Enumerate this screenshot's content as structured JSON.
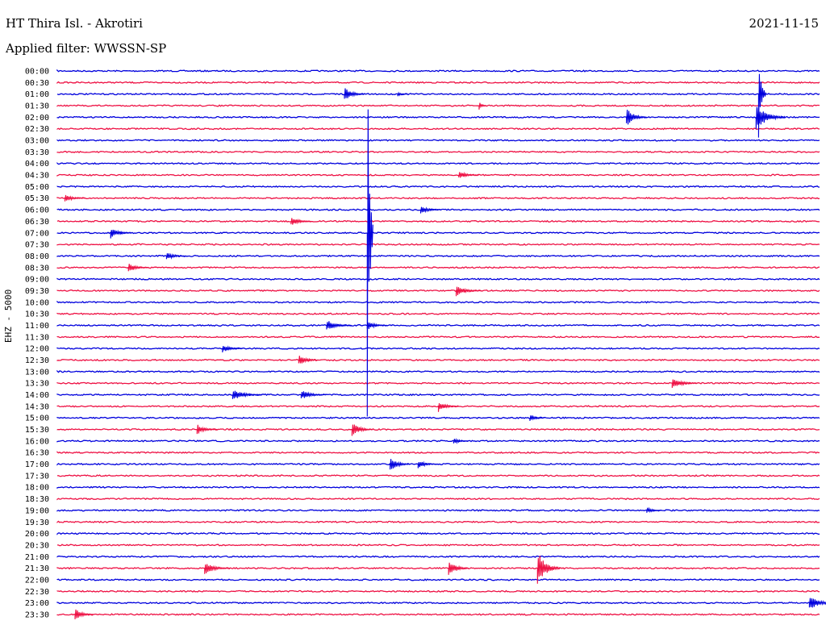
{
  "header": {
    "station": "HT Thira Isl. - Akrotiri",
    "filter": "Applied filter: WWSSN-SP",
    "date": "2021-11-15"
  },
  "chart_data": {
    "type": "line",
    "ylabel": "EHZ - 5000",
    "xlabel": "",
    "title": "",
    "row_labels": [
      "00:00",
      "00:30",
      "01:00",
      "01:30",
      "02:00",
      "02:30",
      "03:00",
      "03:30",
      "04:00",
      "04:30",
      "05:00",
      "05:30",
      "06:00",
      "06:30",
      "07:00",
      "07:30",
      "08:00",
      "08:30",
      "09:00",
      "09:30",
      "10:00",
      "10:30",
      "11:00",
      "11:30",
      "12:00",
      "12:30",
      "13:00",
      "13:30",
      "14:00",
      "14:30",
      "15:00",
      "15:30",
      "16:00",
      "16:30",
      "17:00",
      "17:30",
      "18:00",
      "18:30",
      "19:00",
      "19:30",
      "20:00",
      "20:30",
      "21:00",
      "21:30",
      "22:00",
      "22:30",
      "23:00",
      "23:30"
    ],
    "colors": {
      "even": "#0000dd",
      "odd": "#ee1144"
    },
    "row_duration_minutes": 30,
    "events": [
      {
        "row": 2,
        "minute": 11.3,
        "amplitude": 9,
        "duration": 0.8
      },
      {
        "row": 2,
        "minute": 13.4,
        "amplitude": 3,
        "duration": 0.4
      },
      {
        "row": 3,
        "minute": 16.6,
        "amplitude": 5,
        "duration": 0.3
      },
      {
        "row": 4,
        "minute": 22.4,
        "amplitude": 12,
        "duration": 0.8
      },
      {
        "row": 4,
        "minute": 27.5,
        "amplitude": 16,
        "duration": 1.2
      },
      {
        "row": 2,
        "minute": 27.6,
        "amplitude": 55,
        "duration": 0.3
      },
      {
        "row": 9,
        "minute": 15.8,
        "amplitude": 5,
        "duration": 0.8
      },
      {
        "row": 11,
        "minute": 0.3,
        "amplitude": 5,
        "duration": 0.8
      },
      {
        "row": 12,
        "minute": 14.3,
        "amplitude": 5,
        "duration": 0.8
      },
      {
        "row": 13,
        "minute": 9.2,
        "amplitude": 6,
        "duration": 0.8
      },
      {
        "row": 14,
        "minute": 2.1,
        "amplitude": 7,
        "duration": 0.8
      },
      {
        "row": 16,
        "minute": 4.3,
        "amplitude": 5,
        "duration": 0.8
      },
      {
        "row": 17,
        "minute": 2.8,
        "amplitude": 6,
        "duration": 0.8
      },
      {
        "row": 19,
        "minute": 15.7,
        "amplitude": 7,
        "duration": 1.0
      },
      {
        "row": 22,
        "minute": 10.6,
        "amplitude": 7,
        "duration": 1.0
      },
      {
        "row": 22,
        "minute": 12.2,
        "amplitude": 6,
        "duration": 0.8
      },
      {
        "row": 24,
        "minute": 6.5,
        "amplitude": 5,
        "duration": 0.8
      },
      {
        "row": 25,
        "minute": 9.5,
        "amplitude": 7,
        "duration": 0.8
      },
      {
        "row": 14,
        "minute": 12.2,
        "amplitude": 230,
        "duration": 0.25
      },
      {
        "row": 27,
        "minute": 24.2,
        "amplitude": 7,
        "duration": 1.0
      },
      {
        "row": 28,
        "minute": 6.9,
        "amplitude": 7,
        "duration": 1.2
      },
      {
        "row": 28,
        "minute": 9.6,
        "amplitude": 6,
        "duration": 1.0
      },
      {
        "row": 29,
        "minute": 15.0,
        "amplitude": 7,
        "duration": 0.8
      },
      {
        "row": 30,
        "minute": 18.6,
        "amplitude": 5,
        "duration": 0.6
      },
      {
        "row": 31,
        "minute": 5.5,
        "amplitude": 7,
        "duration": 0.8
      },
      {
        "row": 31,
        "minute": 11.6,
        "amplitude": 9,
        "duration": 0.8
      },
      {
        "row": 32,
        "minute": 15.6,
        "amplitude": 4,
        "duration": 0.6
      },
      {
        "row": 34,
        "minute": 13.1,
        "amplitude": 9,
        "duration": 0.8
      },
      {
        "row": 34,
        "minute": 14.2,
        "amplitude": 5,
        "duration": 0.8
      },
      {
        "row": 38,
        "minute": 23.2,
        "amplitude": 4,
        "duration": 0.6
      },
      {
        "row": 43,
        "minute": 5.8,
        "amplitude": 8,
        "duration": 1.0
      },
      {
        "row": 43,
        "minute": 15.4,
        "amplitude": 11,
        "duration": 0.8
      },
      {
        "row": 43,
        "minute": 18.9,
        "amplitude": 22,
        "duration": 0.9
      },
      {
        "row": 46,
        "minute": 29.6,
        "amplitude": 8,
        "duration": 1.2
      },
      {
        "row": 47,
        "minute": 0.7,
        "amplitude": 8,
        "duration": 0.7
      }
    ]
  }
}
